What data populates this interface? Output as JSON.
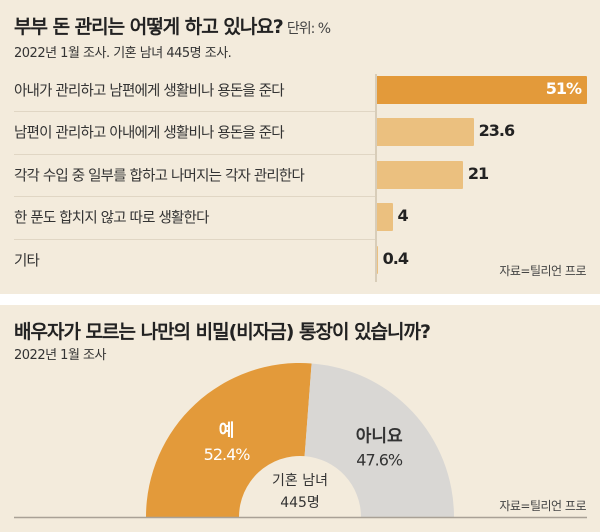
{
  "chart_data": [
    {
      "type": "bar",
      "orientation": "horizontal",
      "title": "부부 돈 관리는 어떻게 하고 있나요?",
      "unit": "단위: %",
      "subtitle": "2022년 1월 조사. 기혼 남녀 445명 조사.",
      "categories": [
        "아내가 관리하고 남편에게 생활비나 용돈을 준다",
        "남편이 관리하고 아내에게 생활비나 용돈을 준다",
        "각각 수입 중 일부를 합하고 나머지는 각자 관리한다",
        "한 푼도 합치지 않고 따로 생활한다",
        "기타"
      ],
      "values": [
        51,
        23.6,
        21,
        4,
        0.4
      ],
      "value_labels": [
        "51%",
        "23.6",
        "21",
        "4",
        "0.4"
      ],
      "xlim": [
        0,
        51
      ],
      "source": "자료=틸리언 프로",
      "colors": {
        "highlight": "#e39a3a",
        "normal": "#ebc07f"
      }
    },
    {
      "type": "pie",
      "variant": "half-donut",
      "title": "배우자가 모르는 나만의 비밀(비자금) 통장이 있습니까?",
      "subtitle": "2022년 1월 조사",
      "slices": [
        {
          "label": "예",
          "value": 52.4,
          "value_label": "52.4%",
          "color": "#e39a3a"
        },
        {
          "label": "아니요",
          "value": 47.6,
          "value_label": "47.6%",
          "color": "#d9d7d4"
        }
      ],
      "center_label": [
        "기혼 남녀",
        "445명"
      ],
      "source": "자료=틸리언 프로"
    }
  ]
}
